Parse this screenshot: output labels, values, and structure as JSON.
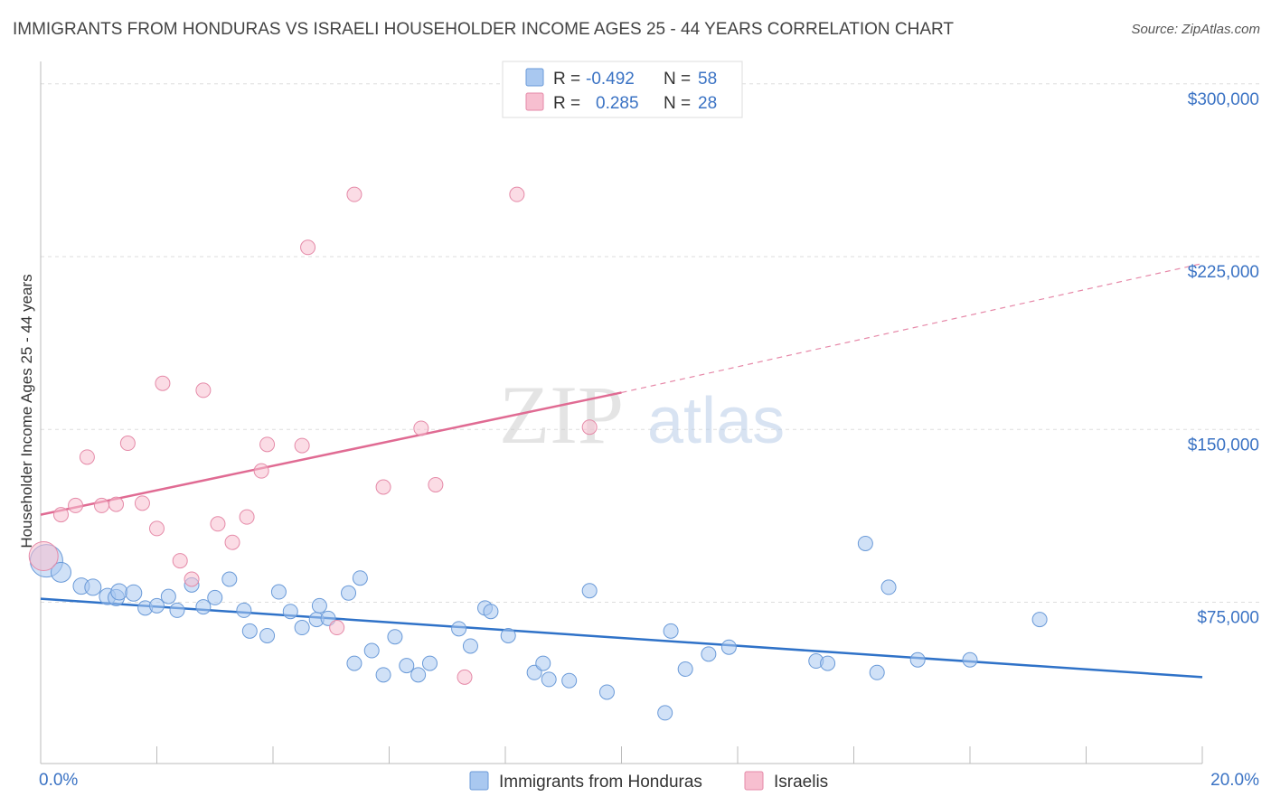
{
  "title": "IMMIGRANTS FROM HONDURAS VS ISRAELI HOUSEHOLDER INCOME AGES 25 - 44 YEARS CORRELATION CHART",
  "source": "Source: ZipAtlas.com",
  "watermark": {
    "zip": "ZIP",
    "atlas": "atlas"
  },
  "legend_top": [
    {
      "r_label": "R =",
      "r_value": "-0.492",
      "n_label": "N =",
      "n_value": "58",
      "color": "#a9c8f0",
      "border": "#6a9ad8"
    },
    {
      "r_label": "R =",
      "r_value": "0.285",
      "n_label": "N =",
      "n_value": "28",
      "color": "#f7bfd0",
      "border": "#e58aa8"
    }
  ],
  "legend_bottom": [
    {
      "label": "Immigrants from Honduras",
      "color": "#a9c8f0",
      "border": "#6a9ad8"
    },
    {
      "label": "Israelis",
      "color": "#f7bfd0",
      "border": "#e58aa8"
    }
  ],
  "chart_data": {
    "type": "scatter",
    "title": "IMMIGRANTS FROM HONDURAS VS ISRAELI HOUSEHOLDER INCOME AGES 25 - 44 YEARS CORRELATION CHART",
    "xlabel": "",
    "ylabel": "Householder Income Ages 25 - 44 years",
    "xlim": [
      0,
      20
    ],
    "ylim": [
      5000,
      305000
    ],
    "x_tick_labels": [
      "0.0%",
      "20.0%"
    ],
    "y_ticks": [
      75000,
      150000,
      225000,
      300000
    ],
    "y_tick_labels": [
      "$75,000",
      "$150,000",
      "$225,000",
      "$300,000"
    ],
    "grid": true,
    "series": [
      {
        "name": "Immigrants from Honduras",
        "color": "#a9c8f0",
        "edge": "#6a9ad8",
        "trend_color": "#2f72c8",
        "trend": {
          "x": [
            0,
            20
          ],
          "y": [
            76500,
            42500
          ]
        },
        "points": [
          [
            0.1,
            93000,
            18
          ],
          [
            0.35,
            88000,
            11
          ],
          [
            0.7,
            82000,
            9
          ],
          [
            0.9,
            81500,
            9
          ],
          [
            1.15,
            77500,
            9
          ],
          [
            1.3,
            77000,
            9
          ],
          [
            1.35,
            79500,
            9
          ],
          [
            1.6,
            79000,
            9
          ],
          [
            1.8,
            72500,
            8
          ],
          [
            2.0,
            73500,
            8
          ],
          [
            2.2,
            77500,
            8
          ],
          [
            2.35,
            71500,
            8
          ],
          [
            2.6,
            82500,
            8
          ],
          [
            2.8,
            73000,
            8
          ],
          [
            3.0,
            77000,
            8
          ],
          [
            3.25,
            85000,
            8
          ],
          [
            3.5,
            71500,
            8
          ],
          [
            3.6,
            62500,
            8
          ],
          [
            3.9,
            60500,
            8
          ],
          [
            4.1,
            79500,
            8
          ],
          [
            4.3,
            71000,
            8
          ],
          [
            4.5,
            64000,
            8
          ],
          [
            4.75,
            67500,
            8
          ],
          [
            4.8,
            73500,
            8
          ],
          [
            4.95,
            68000,
            8
          ],
          [
            5.3,
            79000,
            8
          ],
          [
            5.4,
            48500,
            8
          ],
          [
            5.5,
            85500,
            8
          ],
          [
            5.7,
            54000,
            8
          ],
          [
            5.9,
            43500,
            8
          ],
          [
            6.1,
            60000,
            8
          ],
          [
            6.3,
            47500,
            8
          ],
          [
            6.5,
            43500,
            8
          ],
          [
            6.7,
            48500,
            8
          ],
          [
            7.2,
            63500,
            8
          ],
          [
            7.4,
            56000,
            8
          ],
          [
            7.65,
            72500,
            8
          ],
          [
            7.75,
            71000,
            8
          ],
          [
            8.05,
            60500,
            8
          ],
          [
            8.5,
            44500,
            8
          ],
          [
            8.65,
            48500,
            8
          ],
          [
            8.75,
            41500,
            8
          ],
          [
            9.1,
            41000,
            8
          ],
          [
            9.45,
            80000,
            8
          ],
          [
            9.75,
            36000,
            8
          ],
          [
            10.75,
            27000,
            8
          ],
          [
            10.85,
            62500,
            8
          ],
          [
            11.1,
            46000,
            8
          ],
          [
            11.5,
            52500,
            8
          ],
          [
            11.85,
            55500,
            8
          ],
          [
            13.35,
            49500,
            8
          ],
          [
            13.55,
            48500,
            8
          ],
          [
            14.2,
            100500,
            8
          ],
          [
            14.4,
            44500,
            8
          ],
          [
            14.6,
            81500,
            8
          ],
          [
            15.1,
            50000,
            8
          ],
          [
            16.0,
            50000,
            8
          ],
          [
            17.2,
            67500,
            8
          ]
        ]
      },
      {
        "name": "Israelis",
        "color": "#f7bfd0",
        "edge": "#e58aa8",
        "trend_color": "#e06b93",
        "trend": {
          "x": [
            0,
            10
          ],
          "y": [
            113000,
            166000
          ]
        },
        "trend_dashed": {
          "x": [
            10,
            20
          ],
          "y": [
            166000,
            222000
          ]
        },
        "points": [
          [
            0.05,
            95000,
            16
          ],
          [
            0.35,
            113000,
            8
          ],
          [
            0.6,
            117000,
            8
          ],
          [
            0.8,
            138000,
            8
          ],
          [
            1.05,
            117000,
            8
          ],
          [
            1.3,
            117500,
            8
          ],
          [
            1.5,
            144000,
            8
          ],
          [
            1.75,
            118000,
            8
          ],
          [
            2.0,
            107000,
            8
          ],
          [
            2.1,
            170000,
            8
          ],
          [
            2.4,
            93000,
            8
          ],
          [
            2.6,
            85000,
            8
          ],
          [
            2.8,
            167000,
            8
          ],
          [
            3.05,
            109000,
            8
          ],
          [
            3.3,
            101000,
            8
          ],
          [
            3.55,
            112000,
            8
          ],
          [
            3.8,
            132000,
            8
          ],
          [
            3.9,
            143500,
            8
          ],
          [
            4.5,
            143000,
            8
          ],
          [
            4.6,
            229000,
            8
          ],
          [
            5.1,
            64000,
            8
          ],
          [
            5.4,
            252000,
            8
          ],
          [
            5.9,
            125000,
            8
          ],
          [
            6.55,
            150500,
            8
          ],
          [
            6.8,
            126000,
            8
          ],
          [
            7.3,
            42500,
            8
          ],
          [
            8.2,
            252000,
            8
          ],
          [
            9.45,
            151000,
            8
          ]
        ]
      }
    ]
  }
}
